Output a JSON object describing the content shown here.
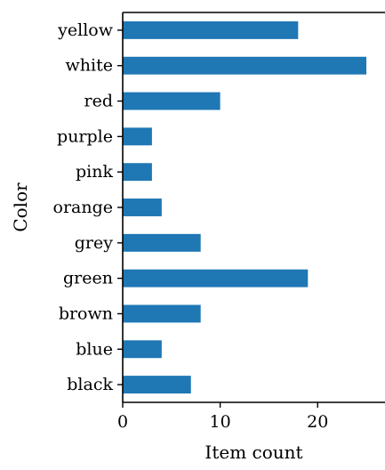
{
  "chart_data": {
    "type": "bar",
    "orientation": "horizontal",
    "categories": [
      "yellow",
      "white",
      "red",
      "purple",
      "pink",
      "orange",
      "grey",
      "green",
      "brown",
      "blue",
      "black"
    ],
    "values": [
      18,
      25,
      10,
      3,
      3,
      4,
      8,
      19,
      8,
      4,
      7
    ],
    "xlabel": "Item count",
    "ylabel": "Color",
    "xlim": [
      0,
      26
    ],
    "xticks": [
      0,
      10,
      20
    ],
    "grid": false,
    "bar_color": "#1f77b4"
  }
}
